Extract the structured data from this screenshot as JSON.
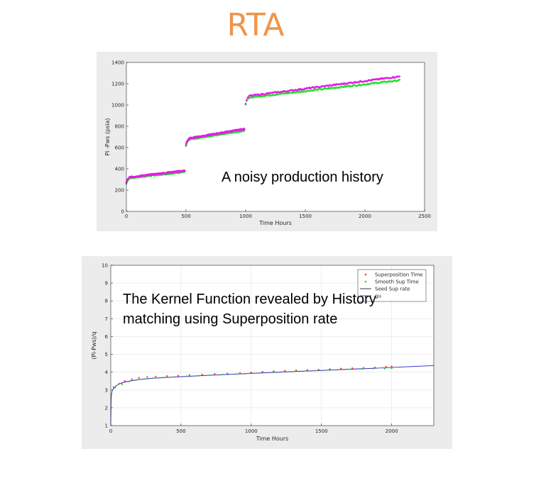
{
  "page": {
    "title": "RTA",
    "title_color": "#f0954b"
  },
  "chart_data": [
    {
      "type": "scatter",
      "title": "",
      "xlabel": "Time Hours",
      "ylabel": "Pi -Pws (psia)",
      "xlim": [
        0,
        2500
      ],
      "ylim": [
        0,
        1400
      ],
      "xticks": [
        0,
        500,
        1000,
        1500,
        2000,
        2500
      ],
      "yticks": [
        0,
        200,
        400,
        600,
        800,
        1000,
        1200,
        1400
      ],
      "grid": false,
      "annotation": "A noisy production history",
      "series": [
        {
          "color": "#22e22b",
          "segments": [
            {
              "x_start": 0,
              "x_end": 490,
              "y_start": 260,
              "y_at_30": 315,
              "y_end": 372
            },
            {
              "x_start": 500,
              "x_end": 990,
              "y_start": 610,
              "y_at_30": 678,
              "y_end": 760
            },
            {
              "x_start": 1000,
              "x_end": 2290,
              "y_start": 1000,
              "y_at_30": 1070,
              "y_end": 1232
            }
          ]
        },
        {
          "color": "#e41be6",
          "segments": [
            {
              "x_start": 0,
              "x_end": 490,
              "y_start": 265,
              "y_at_30": 322,
              "y_end": 383
            },
            {
              "x_start": 500,
              "x_end": 990,
              "y_start": 620,
              "y_at_30": 688,
              "y_end": 775
            },
            {
              "x_start": 1000,
              "x_end": 2290,
              "y_start": 1010,
              "y_at_30": 1085,
              "y_end": 1268
            }
          ]
        }
      ]
    },
    {
      "type": "line",
      "title": "",
      "xlabel": "Time Hours",
      "ylabel": "(Pi-Pws)/q",
      "xlim": [
        0,
        2300
      ],
      "ylim": [
        1,
        10
      ],
      "xticks": [
        0,
        500,
        1000,
        1500,
        2000
      ],
      "yticks": [
        1,
        2,
        3,
        4,
        5,
        6,
        7,
        8,
        9,
        10
      ],
      "grid": true,
      "legend_position": "top-right",
      "annotation": "The Kernel Function revealed by History matching using Superposition rate",
      "legend": [
        {
          "label": "Superposition Time",
          "color": "#ff3d2f",
          "marker": "dot"
        },
        {
          "label": "Smooth Sup Time",
          "color": "#2ed62b",
          "marker": "dot"
        },
        {
          "label": "Seed Sup rate",
          "color": "#1b1b4a",
          "marker": "line"
        },
        {
          "label": "gu",
          "color": "#3b3bd6",
          "marker": "line"
        }
      ],
      "gu_curve": {
        "x": [
          0,
          2,
          5,
          10,
          20,
          40,
          70,
          100,
          150,
          200,
          300,
          400,
          500,
          700,
          900,
          1100,
          1300,
          1500,
          1700,
          1900,
          2100,
          2300
        ],
        "y": [
          1.0,
          2.3,
          2.75,
          2.95,
          3.1,
          3.25,
          3.38,
          3.45,
          3.53,
          3.59,
          3.66,
          3.71,
          3.75,
          3.83,
          3.9,
          3.97,
          4.04,
          4.1,
          4.17,
          4.23,
          4.3,
          4.37
        ]
      },
      "superposition_points": {
        "x": [
          20,
          60,
          100,
          150,
          200,
          260,
          320,
          400,
          480,
          560,
          650,
          740,
          830,
          920,
          1000,
          1080,
          1160,
          1240,
          1320,
          1400,
          1480,
          1560,
          1640,
          1720,
          1800,
          1880,
          1960,
          2000
        ],
        "y": [
          3.15,
          3.35,
          3.5,
          3.6,
          3.68,
          3.72,
          3.75,
          3.78,
          3.8,
          3.84,
          3.87,
          3.9,
          3.92,
          3.95,
          3.98,
          4.02,
          4.05,
          4.08,
          4.1,
          4.12,
          4.14,
          4.17,
          4.2,
          4.22,
          4.24,
          4.26,
          4.3,
          4.32
        ]
      },
      "smooth_points": {
        "x": [
          30,
          80,
          130,
          180,
          240,
          300,
          380,
          460,
          540,
          620,
          700,
          800,
          900,
          990,
          1070,
          1150,
          1230,
          1310,
          1390,
          1470,
          1550,
          1630,
          1710,
          1790,
          1870,
          1950,
          2000
        ],
        "y": [
          3.12,
          3.32,
          3.47,
          3.56,
          3.62,
          3.66,
          3.7,
          3.73,
          3.77,
          3.8,
          3.83,
          3.87,
          3.9,
          3.93,
          3.96,
          3.99,
          4.02,
          4.04,
          4.07,
          4.09,
          4.12,
          4.14,
          4.16,
          4.18,
          4.2,
          4.2,
          4.22
        ]
      }
    }
  ]
}
